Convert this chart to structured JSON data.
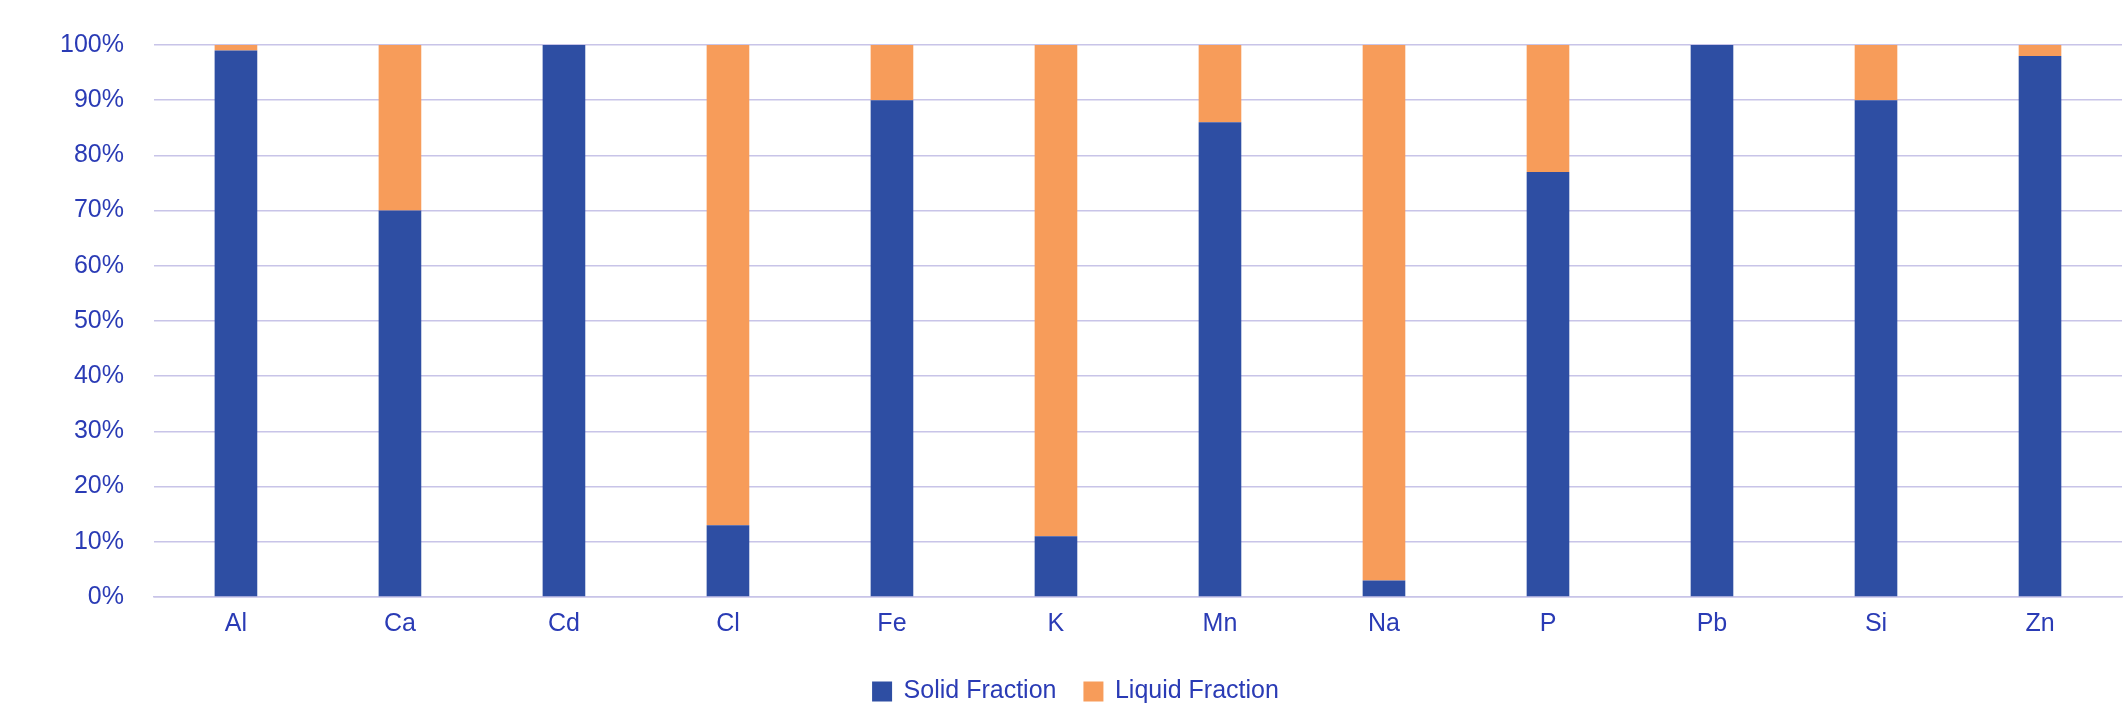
{
  "chart_data": {
    "type": "bar",
    "stacked": true,
    "categories": [
      "Al",
      "Ca",
      "Cd",
      "Cl",
      "Fe",
      "K",
      "Mn",
      "Na",
      "P",
      "Pb",
      "Si",
      "Zn"
    ],
    "series": [
      {
        "name": "Solid Fraction",
        "color": "#2e4ea3",
        "values": [
          99,
          70,
          100,
          13,
          90,
          11,
          86,
          3,
          77,
          100,
          90,
          98
        ]
      },
      {
        "name": "Liquid Fraction",
        "color": "#f79c5a",
        "values": [
          1,
          30,
          0,
          87,
          10,
          89,
          14,
          97,
          23,
          0,
          10,
          2
        ]
      }
    ],
    "ylim": [
      0,
      100
    ],
    "yticks": [
      {
        "value": 0,
        "label": "0%"
      },
      {
        "value": 10,
        "label": "10%"
      },
      {
        "value": 20,
        "label": "20%"
      },
      {
        "value": 30,
        "label": "30%"
      },
      {
        "value": 40,
        "label": "40%"
      },
      {
        "value": 50,
        "label": "50%"
      },
      {
        "value": 60,
        "label": "60%"
      },
      {
        "value": 70,
        "label": "70%"
      },
      {
        "value": 80,
        "label": "80%"
      },
      {
        "value": 90,
        "label": "90%"
      },
      {
        "value": 100,
        "label": "100%"
      }
    ],
    "grid": "y",
    "legend": "bottom"
  }
}
